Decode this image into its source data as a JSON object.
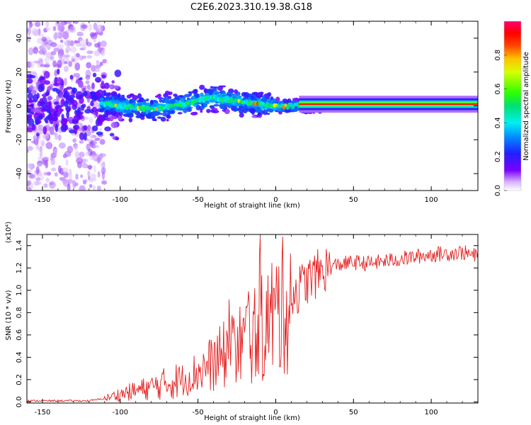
{
  "title": "C2E6.2023.310.19.38.G18",
  "colors": {
    "snr_line": "#e32020",
    "axis": "#000000"
  },
  "chart_data": [
    {
      "type": "heatmap",
      "xlabel": "Height of straight line (km)",
      "ylabel": "Frequency (Hz)",
      "xlim": [
        -160,
        130
      ],
      "ylim": [
        -50,
        50
      ],
      "xticks": [
        -150,
        -100,
        -50,
        0,
        50,
        100
      ],
      "xtick_labels": [
        "-150",
        "-100",
        "-50",
        "0",
        "50",
        "100"
      ],
      "yticks": [
        -40,
        -20,
        0,
        20,
        40
      ],
      "ytick_labels": [
        "-40",
        "-20",
        "0",
        "20",
        "40"
      ],
      "colorbar": {
        "label": "Normalized spectral amplitude",
        "range": [
          0,
          1
        ],
        "ticks": [
          0.0,
          0.2,
          0.4,
          0.6,
          0.8
        ],
        "tick_labels": [
          "0.0",
          "0.2",
          "0.4",
          "0.6",
          "0.8"
        ],
        "colormap": "rainbow (white → purple → blue → cyan → green → yellow → red → magenta)"
      },
      "ridge": {
        "description": "Spectral ridge near 0 Hz: noisy and broad below -110 km, organized green/cyan band from -110 km, narrow stable line above 20 km",
        "center_frequency": [
          {
            "x": -110,
            "y": 1
          },
          {
            "x": -80,
            "y": -2
          },
          {
            "x": -60,
            "y": 1
          },
          {
            "x": -40,
            "y": 5
          },
          {
            "x": -20,
            "y": 2
          },
          {
            "x": 0,
            "y": 0
          },
          {
            "x": 20,
            "y": 0
          },
          {
            "x": 50,
            "y": 1
          },
          {
            "x": 130,
            "y": 1
          }
        ]
      }
    },
    {
      "type": "line",
      "xlabel": "Height of straight line (km)",
      "ylabel": "SNR (10 * v/v)",
      "y_scale_label": "(x10⁴)",
      "xlim": [
        -160,
        130
      ],
      "ylim": [
        -0.01,
        1.5
      ],
      "xticks": [
        -150,
        -100,
        -50,
        0,
        50,
        100
      ],
      "xtick_labels": [
        "-150",
        "-100",
        "-50",
        "0",
        "50",
        "100"
      ],
      "yticks": [
        0.0,
        0.2,
        0.4,
        0.6,
        0.8,
        1.0,
        1.2,
        1.4
      ],
      "ytick_labels": [
        "0.0",
        "0.2",
        "0.4",
        "0.6",
        "0.8",
        "1.0",
        "1.2",
        "1.4"
      ],
      "series": [
        {
          "name": "SNR",
          "description": "Noisy line; approximate envelope (mean trend) of the trace",
          "x": [
            -160,
            -120,
            -110,
            -100,
            -90,
            -80,
            -70,
            -60,
            -50,
            -40,
            -30,
            -20,
            -10,
            0,
            10,
            20,
            30,
            40,
            50,
            60,
            70,
            80,
            90,
            100,
            110,
            120,
            130
          ],
          "y": [
            0.01,
            0.01,
            0.03,
            0.07,
            0.1,
            0.13,
            0.17,
            0.2,
            0.27,
            0.35,
            0.45,
            0.55,
            0.65,
            0.8,
            0.95,
            1.08,
            1.18,
            1.23,
            1.25,
            1.24,
            1.26,
            1.28,
            1.3,
            1.32,
            1.33,
            1.34,
            1.3
          ]
        }
      ]
    }
  ]
}
